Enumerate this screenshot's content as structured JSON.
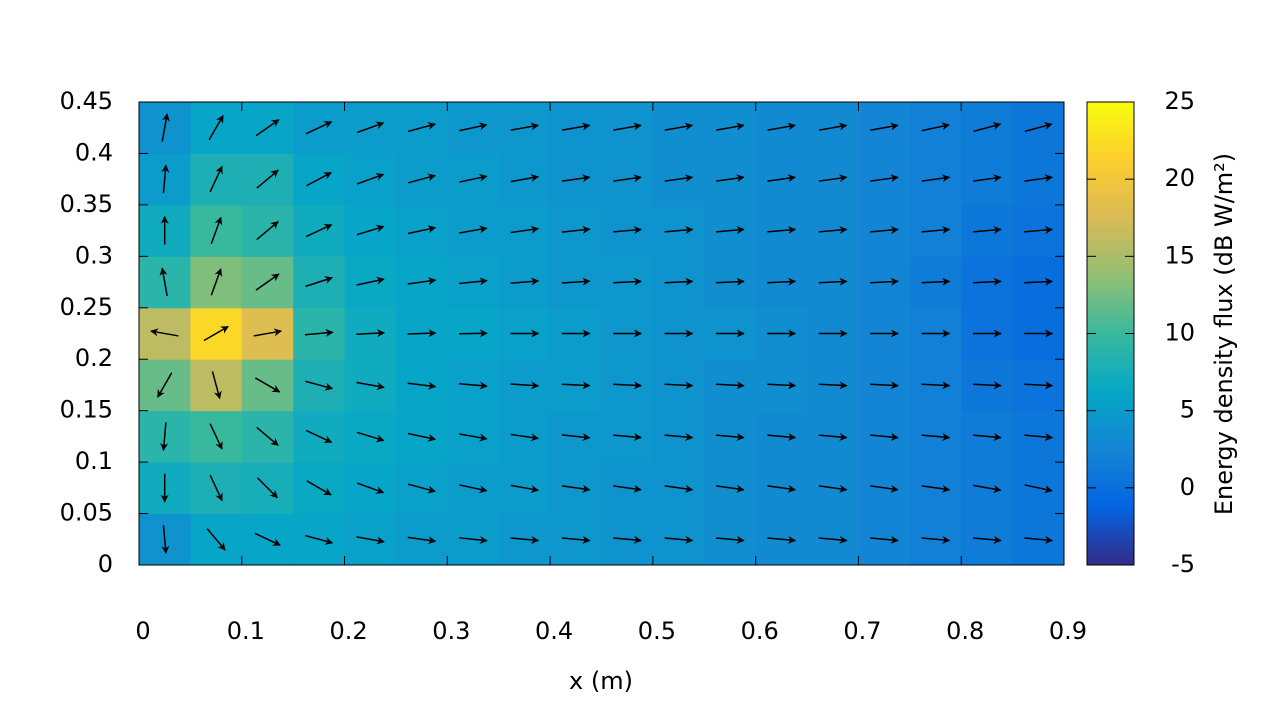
{
  "chart_data": {
    "type": "heatmap",
    "xlabel": "x (m)",
    "colorbar_label": "Energy density flux (dB W/m²)",
    "x": [
      0.025,
      0.075,
      0.125,
      0.175,
      0.225,
      0.275,
      0.325,
      0.375,
      0.425,
      0.475,
      0.525,
      0.575,
      0.625,
      0.675,
      0.725,
      0.775,
      0.825,
      0.875
    ],
    "y": [
      0.025,
      0.075,
      0.125,
      0.175,
      0.225,
      0.275,
      0.325,
      0.375,
      0.425
    ],
    "values": [
      [
        4,
        6,
        6,
        6,
        5.5,
        5,
        5,
        4.5,
        4.5,
        4,
        4,
        3.5,
        3,
        3,
        2.5,
        2,
        1.5,
        1
      ],
      [
        7,
        8,
        7.5,
        6.5,
        6,
        5.5,
        5,
        5,
        4.5,
        4,
        4,
        3.5,
        3,
        3,
        2.5,
        2,
        1.5,
        1
      ],
      [
        9,
        10,
        9,
        7,
        6.5,
        6,
        5.5,
        5,
        4.5,
        4.5,
        4,
        3.5,
        3,
        3,
        2.5,
        2,
        1.5,
        1
      ],
      [
        12,
        16,
        12,
        8,
        7,
        6,
        5.5,
        5,
        5,
        4.5,
        4,
        3.5,
        3.5,
        3,
        2.5,
        2,
        1,
        0.5
      ],
      [
        16,
        22,
        18,
        9,
        7,
        6,
        6,
        5.5,
        5,
        4.5,
        4,
        4,
        3.5,
        3,
        2.5,
        2,
        0.5,
        0
      ],
      [
        9,
        13,
        12,
        8,
        6.5,
        6,
        5.5,
        5,
        4.5,
        4.5,
        4,
        3.5,
        3,
        3,
        2.5,
        1.5,
        0.5,
        0
      ],
      [
        7,
        10,
        9,
        7,
        6,
        5.5,
        5,
        5,
        4.5,
        4,
        4,
        3.5,
        3,
        3,
        2.5,
        2,
        1,
        0.5
      ],
      [
        5,
        8,
        8,
        6,
        5.5,
        5,
        5,
        4.5,
        4,
        4,
        3.5,
        3.5,
        3,
        3,
        2.5,
        2,
        1.5,
        1
      ],
      [
        4,
        6,
        6,
        5,
        5,
        5,
        4.5,
        4.5,
        4,
        4,
        3.5,
        3.5,
        3,
        3,
        2.5,
        2,
        1.5,
        1
      ]
    ],
    "arrow_angle": [
      [
        -85,
        -50,
        -25,
        -15,
        -10,
        -8,
        -6,
        -5,
        -5,
        -5,
        -5,
        -5,
        -5,
        -5,
        -5,
        -5,
        -5,
        -5
      ],
      [
        -90,
        -65,
        -45,
        -30,
        -20,
        -15,
        -12,
        -10,
        -8,
        -8,
        -8,
        -8,
        -8,
        -8,
        -8,
        -8,
        -10,
        -12
      ],
      [
        -95,
        -65,
        -40,
        -25,
        -17,
        -12,
        -10,
        -8,
        -6,
        -5,
        -5,
        -5,
        -5,
        -5,
        -5,
        -5,
        -5,
        -5
      ],
      [
        -120,
        -75,
        -30,
        -15,
        -10,
        -7,
        -5,
        -4,
        -3,
        -3,
        -3,
        -3,
        -3,
        -3,
        -3,
        -3,
        -3,
        -3
      ],
      [
        170,
        30,
        10,
        5,
        3,
        2,
        1,
        0,
        0,
        0,
        0,
        0,
        0,
        0,
        0,
        0,
        0,
        0
      ],
      [
        100,
        70,
        35,
        18,
        12,
        8,
        6,
        5,
        4,
        3,
        3,
        3,
        3,
        3,
        3,
        3,
        3,
        3
      ],
      [
        90,
        70,
        40,
        25,
        17,
        12,
        10,
        8,
        6,
        5,
        5,
        5,
        5,
        5,
        5,
        5,
        5,
        5
      ],
      [
        85,
        65,
        40,
        28,
        20,
        15,
        12,
        10,
        8,
        8,
        8,
        8,
        8,
        8,
        8,
        8,
        8,
        8
      ],
      [
        80,
        60,
        35,
        25,
        20,
        15,
        12,
        10,
        10,
        10,
        10,
        10,
        10,
        10,
        10,
        12,
        15,
        15
      ]
    ],
    "xlim": [
      0,
      0.9
    ],
    "xticks": [
      0,
      0.1,
      0.2,
      0.3,
      0.4,
      0.5,
      0.6,
      0.7,
      0.8,
      0.9
    ],
    "ylim": [
      0,
      0.45
    ],
    "yticks": [
      0,
      0.05,
      0.1,
      0.15,
      0.2,
      0.25,
      0.3,
      0.35,
      0.4,
      0.45
    ],
    "clim": [
      -5,
      25
    ],
    "cticks": [
      -5,
      0,
      5,
      10,
      15,
      20,
      25
    ],
    "colormap": [
      "#352a87",
      "#0363e1",
      "#1485d4",
      "#06a7c6",
      "#38b99e",
      "#92bf73",
      "#d9ba56",
      "#fcce2e",
      "#f9fb0e"
    ],
    "arrow_color": "#000000"
  }
}
